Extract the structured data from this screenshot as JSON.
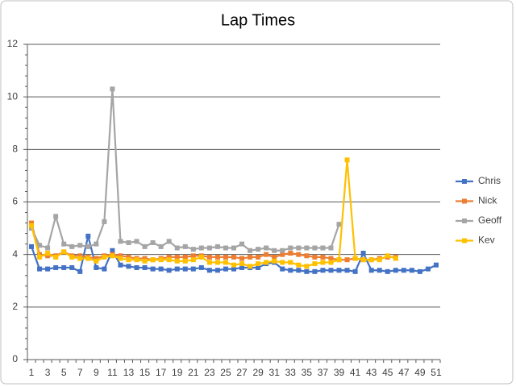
{
  "chart_data": {
    "type": "line",
    "title": "Lap Times",
    "categories": [
      "1",
      null,
      "3",
      null,
      "5",
      null,
      "7",
      null,
      "9",
      null,
      "11",
      null,
      "13",
      null,
      "15",
      null,
      "17",
      null,
      "19",
      null,
      "21",
      null,
      "23",
      null,
      "25",
      null,
      "27",
      null,
      "29",
      null,
      "31",
      null,
      "33",
      null,
      "35",
      null,
      "37",
      null,
      "39",
      null,
      "41",
      null,
      "43",
      null,
      "45",
      null,
      "47",
      null,
      "49",
      null,
      "51"
    ],
    "ylim": [
      0,
      12
    ],
    "yticks": [
      0,
      2,
      4,
      6,
      8,
      10,
      12
    ],
    "grid": true,
    "legend": "right",
    "series": [
      {
        "name": "Chris",
        "color": "#4472c4",
        "values": [
          4.3,
          3.45,
          3.45,
          3.5,
          3.5,
          3.5,
          3.35,
          4.7,
          3.5,
          3.45,
          4.15,
          3.6,
          3.55,
          3.5,
          3.5,
          3.45,
          3.45,
          3.4,
          3.45,
          3.45,
          3.45,
          3.5,
          3.4,
          3.4,
          3.45,
          3.45,
          3.5,
          3.5,
          3.5,
          3.65,
          3.7,
          3.45,
          3.4,
          3.4,
          3.35,
          3.35,
          3.4,
          3.4,
          3.4,
          3.4,
          3.35,
          4.05,
          3.4,
          3.4,
          3.35,
          3.4,
          3.4,
          3.4,
          3.35,
          3.45,
          3.6
        ]
      },
      {
        "name": "Nick",
        "color": "#ed7d31",
        "values": [
          5.2,
          4.0,
          3.95,
          3.95,
          4.1,
          3.95,
          3.95,
          3.9,
          3.85,
          3.95,
          4.0,
          3.95,
          3.9,
          3.85,
          3.85,
          3.8,
          3.85,
          3.9,
          3.9,
          3.9,
          3.95,
          3.95,
          3.9,
          3.9,
          3.9,
          3.9,
          3.85,
          3.9,
          3.9,
          4.0,
          3.9,
          4.0,
          4.05,
          4.0,
          3.95,
          3.9,
          3.9,
          3.85,
          3.8,
          3.8,
          3.85,
          3.8,
          3.8,
          3.85,
          3.9,
          3.9,
          null,
          null,
          null,
          null,
          null
        ]
      },
      {
        "name": "Geoff",
        "color": "#a5a5a5",
        "values": [
          5.0,
          4.35,
          4.25,
          5.45,
          4.4,
          4.3,
          4.35,
          4.3,
          4.4,
          5.25,
          10.3,
          4.5,
          4.45,
          4.5,
          4.3,
          4.45,
          4.3,
          4.5,
          4.25,
          4.3,
          4.2,
          4.25,
          4.25,
          4.3,
          4.25,
          4.25,
          4.4,
          4.15,
          4.2,
          4.25,
          4.15,
          4.15,
          4.25,
          4.25,
          4.25,
          4.25,
          4.25,
          4.25,
          5.15,
          null,
          null,
          null,
          null,
          null,
          null,
          null,
          null,
          null,
          null,
          null,
          null
        ]
      },
      {
        "name": "Kev",
        "color": "#ffc000",
        "values": [
          5.1,
          3.9,
          4.05,
          3.9,
          4.1,
          3.9,
          3.85,
          3.85,
          3.75,
          3.9,
          3.95,
          3.85,
          3.8,
          3.8,
          3.75,
          3.8,
          3.8,
          3.8,
          3.75,
          3.75,
          3.8,
          3.9,
          3.7,
          3.7,
          3.7,
          3.6,
          3.65,
          3.55,
          3.65,
          3.7,
          3.75,
          3.7,
          3.7,
          3.6,
          3.55,
          3.65,
          3.7,
          3.7,
          3.8,
          7.6,
          3.85,
          3.8,
          3.8,
          3.8,
          3.95,
          3.85,
          null,
          null,
          null,
          null,
          null
        ]
      }
    ]
  }
}
